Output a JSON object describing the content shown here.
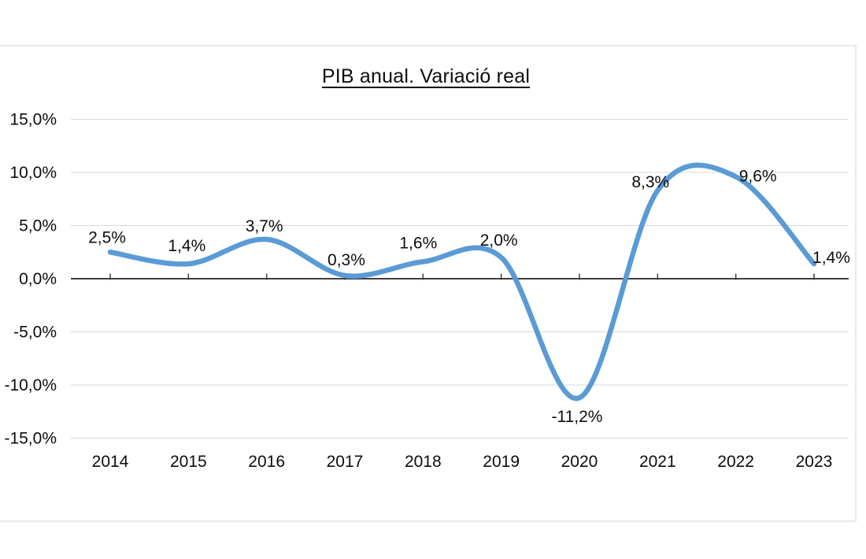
{
  "chart_data": {
    "type": "line",
    "title": "PIB anual. Variació real",
    "categories": [
      "2014",
      "2015",
      "2016",
      "2017",
      "2018",
      "2019",
      "2020",
      "2021",
      "2022",
      "2023"
    ],
    "series": [
      {
        "values": [
          2.5,
          1.4,
          3.7,
          0.3,
          1.6,
          2.0,
          -11.2,
          8.3,
          9.6,
          1.4
        ],
        "data_labels": [
          "2,5%",
          "1,4%",
          "3,7%",
          "0,3%",
          "1,6%",
          "2,0%",
          "-11,2%",
          "8,3%",
          "9,6%",
          "1,4%"
        ],
        "color": "#5B9BD5",
        "smooth": true
      }
    ],
    "y_axis": {
      "tick_labels": [
        "15,0%",
        "10,0%",
        "5,0%",
        "0,0%",
        "-5,0%",
        "-10,0%",
        "-15,0%"
      ],
      "tick_values": [
        15,
        10,
        5,
        0,
        -5,
        -10,
        -15
      ],
      "range": [
        -15,
        15
      ]
    },
    "xlabel": "",
    "ylabel": "",
    "grid": true,
    "legend": "none",
    "colors": {
      "line": "#5B9BD5",
      "gridline": "#D9D9D9",
      "zero_axis": "#3F3F3F",
      "text": "#0D0D0D",
      "card_border": "#E9E9E9",
      "background": "#FFFFFF"
    }
  }
}
